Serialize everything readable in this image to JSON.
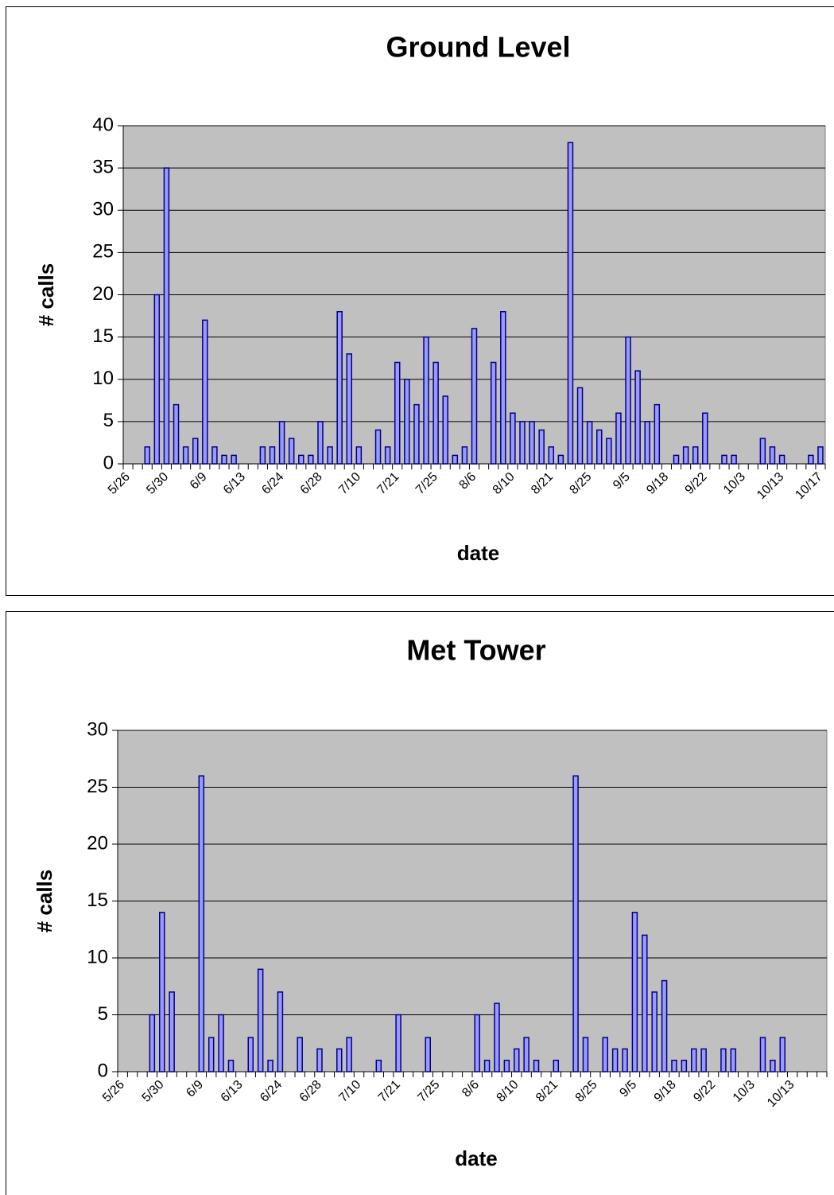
{
  "chart_data": [
    {
      "type": "bar",
      "title": "Ground Level",
      "x_label": "date",
      "y_label": "# calls",
      "categories": [
        "5/26",
        null,
        null,
        null,
        "5/30",
        null,
        null,
        null,
        "6/9",
        null,
        null,
        null,
        "6/13",
        null,
        null,
        null,
        "6/24",
        null,
        null,
        null,
        "6/28",
        null,
        null,
        null,
        "7/10",
        null,
        null,
        null,
        "7/21",
        null,
        null,
        null,
        "7/25",
        null,
        null,
        null,
        "8/6",
        null,
        null,
        null,
        "8/10",
        null,
        null,
        null,
        "8/21",
        null,
        null,
        null,
        "8/25",
        null,
        null,
        null,
        "9/5",
        null,
        null,
        null,
        "9/18",
        null,
        null,
        null,
        "9/22",
        null,
        null,
        null,
        "10/3",
        null,
        null,
        null,
        "10/13",
        null,
        null,
        null,
        "10/17"
      ],
      "values": [
        null,
        null,
        2,
        20,
        35,
        7,
        2,
        3,
        17,
        2,
        1,
        1,
        null,
        null,
        2,
        2,
        5,
        3,
        1,
        1,
        5,
        2,
        18,
        13,
        2,
        null,
        4,
        2,
        12,
        10,
        7,
        15,
        12,
        8,
        1,
        2,
        16,
        null,
        12,
        18,
        6,
        5,
        5,
        4,
        2,
        1,
        38,
        9,
        5,
        4,
        3,
        6,
        15,
        11,
        5,
        7,
        null,
        1,
        2,
        2,
        6,
        null,
        1,
        1,
        null,
        null,
        3,
        2,
        1,
        null,
        null,
        1,
        2
      ],
      "color": "#9999ff",
      "ylim": [
        0,
        40
      ],
      "yticks": [
        0,
        5,
        10,
        15,
        20,
        25,
        30,
        35,
        40
      ],
      "grid": true
    },
    {
      "type": "bar",
      "title": "Met Tower",
      "x_label": "date",
      "y_label": "# calls",
      "categories": [
        "5/26",
        null,
        null,
        null,
        "5/30",
        null,
        null,
        null,
        "6/9",
        null,
        null,
        null,
        "6/13",
        null,
        null,
        null,
        "6/24",
        null,
        null,
        null,
        "6/28",
        null,
        null,
        null,
        "7/10",
        null,
        null,
        null,
        "7/21",
        null,
        null,
        null,
        "7/25",
        null,
        null,
        null,
        "8/6",
        null,
        null,
        null,
        "8/10",
        null,
        null,
        null,
        "8/21",
        null,
        null,
        null,
        "8/25",
        null,
        null,
        null,
        "9/5",
        null,
        null,
        null,
        "9/18",
        null,
        null,
        null,
        "9/22",
        null,
        null,
        null,
        "10/3",
        null,
        null,
        null,
        "10/13",
        null,
        null,
        null
      ],
      "values": [
        null,
        null,
        null,
        5,
        14,
        7,
        null,
        null,
        26,
        3,
        5,
        1,
        null,
        3,
        9,
        1,
        7,
        null,
        3,
        null,
        2,
        null,
        2,
        3,
        null,
        null,
        1,
        null,
        5,
        null,
        null,
        3,
        null,
        null,
        null,
        null,
        5,
        1,
        6,
        1,
        2,
        3,
        1,
        null,
        1,
        null,
        26,
        3,
        null,
        3,
        2,
        2,
        14,
        12,
        7,
        8,
        1,
        1,
        2,
        2,
        null,
        2,
        2,
        null,
        null,
        3,
        1,
        3,
        null,
        null,
        null,
        null
      ],
      "color": "#9999ff",
      "ylim": [
        0,
        30
      ],
      "yticks": [
        0,
        5,
        10,
        15,
        20,
        25,
        30
      ],
      "grid": true
    }
  ]
}
